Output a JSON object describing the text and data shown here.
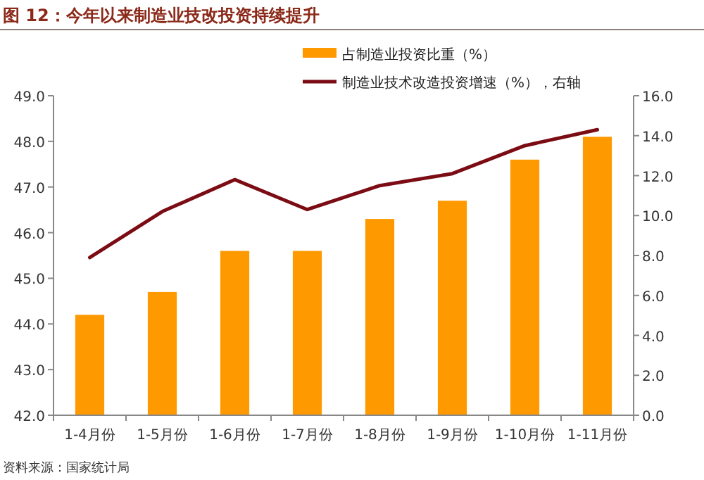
{
  "chart_data": {
    "type": "bar",
    "title": "图 12：今年以来制造业技改投资持续提升",
    "categories": [
      "1-4月份",
      "1-5月份",
      "1-6月份",
      "1-7月份",
      "1-8月份",
      "1-9月份",
      "1-10月份",
      "1-11月份"
    ],
    "series": [
      {
        "name": "占制造业投资比重（%）",
        "color": "#ff9900",
        "values": [
          44.2,
          44.7,
          45.6,
          45.6,
          46.3,
          46.7,
          47.6,
          48.1
        ]
      },
      {
        "name": "制造业技术改造投资增速（%），右轴",
        "type": "line",
        "axis": "y2",
        "color": "#7b0c14",
        "values": [
          7.9,
          10.2,
          11.8,
          10.3,
          11.5,
          12.1,
          13.5,
          14.3
        ]
      }
    ],
    "ylim": [
      42,
      49
    ],
    "yticks": [
      {
        "value": 42,
        "label": "42.0"
      },
      {
        "value": 43,
        "label": "43.0"
      },
      {
        "value": 44,
        "label": "44.0"
      },
      {
        "value": 45,
        "label": "45.0"
      },
      {
        "value": 46,
        "label": "46.0"
      },
      {
        "value": 47,
        "label": "47.0"
      },
      {
        "value": 48,
        "label": "48.0"
      },
      {
        "value": 49,
        "label": "49.0"
      }
    ],
    "y2lim": [
      0,
      16
    ],
    "y2ticks": [
      {
        "value": 0,
        "label": "0.0"
      },
      {
        "value": 2,
        "label": "2.0"
      },
      {
        "value": 4,
        "label": "4.0"
      },
      {
        "value": 6,
        "label": "6.0"
      },
      {
        "value": 8,
        "label": "8.0"
      },
      {
        "value": 10,
        "label": "10.0"
      },
      {
        "value": 12,
        "label": "12.0"
      },
      {
        "value": 14,
        "label": "14.0"
      },
      {
        "value": 16,
        "label": "16.0"
      }
    ],
    "legend": "top right",
    "grid": false,
    "annotations": [
      "资料来源：国家统计局"
    ]
  }
}
